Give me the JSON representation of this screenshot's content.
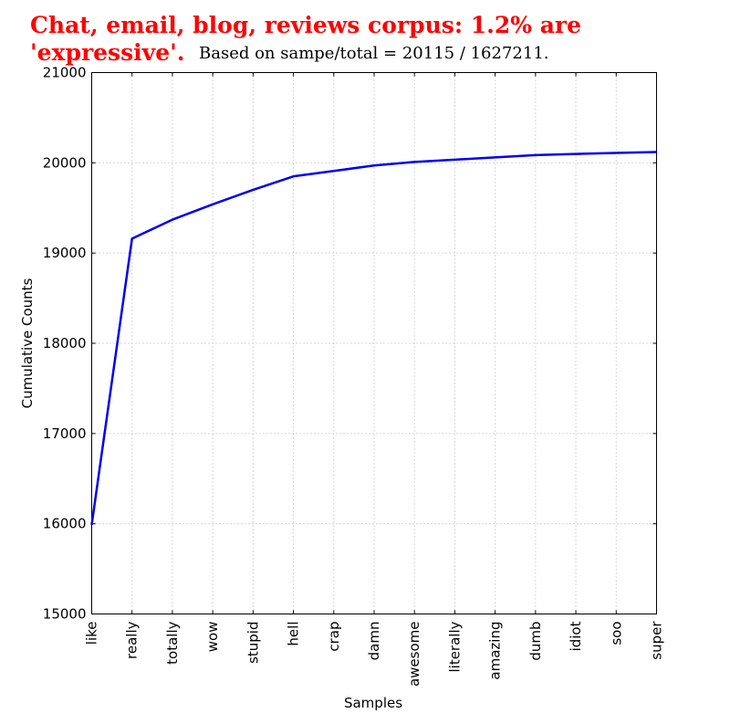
{
  "chart_data": {
    "type": "line",
    "title": "Chat, email, blog, reviews corpus: 1.2% are 'expressive'.",
    "title_line1": "Chat, email, blog, reviews corpus: 1.2% are",
    "title_line2": "'expressive'.",
    "subtitle": "Based on sampe/total = 20115 / 1627211.",
    "xlabel": "Samples",
    "ylabel": "Cumulative Counts",
    "categories": [
      "like",
      "really",
      "totally",
      "wow",
      "stupid",
      "hell",
      "crap",
      "damn",
      "awesome",
      "literally",
      "amazing",
      "dumb",
      "idiot",
      "soo",
      "super"
    ],
    "series": [
      {
        "values": [
          15990,
          19160,
          19370,
          19540,
          19700,
          19850,
          19910,
          19970,
          20010,
          20035,
          20060,
          20085,
          20098,
          20110,
          20120
        ]
      }
    ],
    "ylim": [
      15000,
      21000
    ],
    "yticks": [
      15000,
      16000,
      17000,
      18000,
      19000,
      20000,
      21000
    ],
    "grid": true,
    "line_color": "#0000ee",
    "title_color": "#ff0000"
  }
}
